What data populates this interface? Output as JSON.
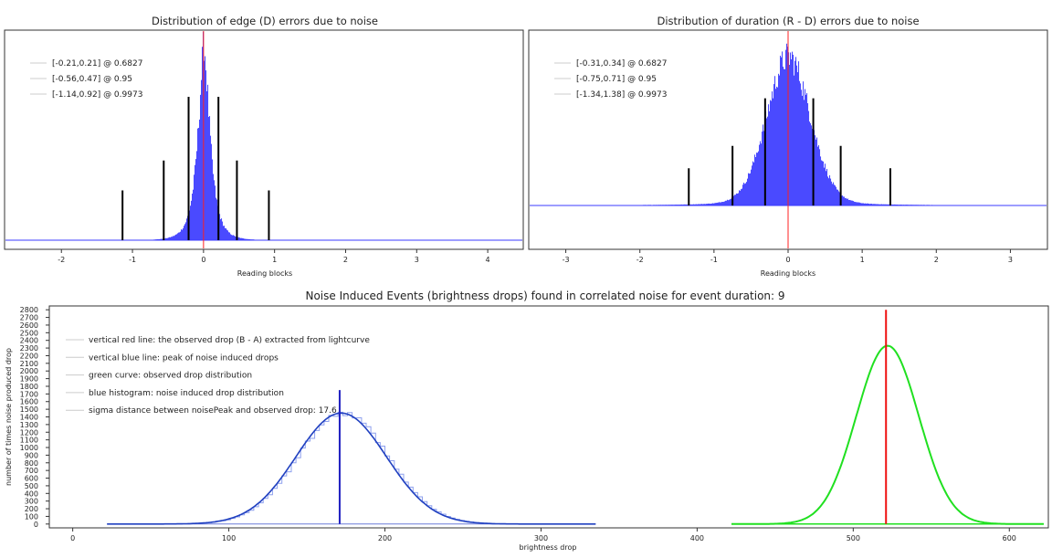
{
  "chart_data": [
    {
      "type": "bar",
      "title": "Distribution of edge (D) errors due to noise",
      "xlabel": "Reading blocks",
      "ylabel": "",
      "xlim": [
        -2.8,
        4.5
      ],
      "ylim": [
        0,
        1.0
      ],
      "x_ticks": [
        -2,
        -1,
        0,
        1,
        2,
        3,
        4
      ],
      "grid": false,
      "legend_position": "top-left",
      "legend": [
        "[-0.21,0.21] @ 0.6827",
        "[-0.56,0.47] @ 0.95",
        "[-1.14,0.92] @ 0.9973"
      ],
      "histogram": {
        "center": 0.0,
        "spread": 0.13,
        "color": "#3b3bff"
      },
      "bounds": [
        {
          "x": -0.21,
          "level": 0.6827
        },
        {
          "x": 0.21,
          "level": 0.6827
        },
        {
          "x": -0.56,
          "level": 0.95
        },
        {
          "x": 0.47,
          "level": 0.95
        },
        {
          "x": -1.14,
          "level": 0.9973
        },
        {
          "x": 0.92,
          "level": 0.9973
        }
      ],
      "zero_line": 0,
      "colors": {
        "bounds": "#000000",
        "zero_line": "#ff2020",
        "baseline": "#3b3bff"
      }
    },
    {
      "type": "bar",
      "title": "Distribution of duration (R - D) errors due to noise",
      "xlabel": "Reading blocks",
      "ylabel": "",
      "xlim": [
        -3.5,
        3.5
      ],
      "ylim": [
        0,
        1.0
      ],
      "x_ticks": [
        -3,
        -2,
        -1,
        0,
        1,
        2,
        3
      ],
      "grid": false,
      "legend_position": "top-left",
      "legend": [
        "[-0.31,0.34] @ 0.6827",
        "[-0.75,0.71] @ 0.95",
        "[-1.34,1.38] @ 0.9973"
      ],
      "histogram": {
        "center": 0.0,
        "spread": 0.3,
        "color": "#3b3bff"
      },
      "bounds": [
        {
          "x": -0.31,
          "level": 0.6827
        },
        {
          "x": 0.34,
          "level": 0.6827
        },
        {
          "x": -0.75,
          "level": 0.95
        },
        {
          "x": 0.71,
          "level": 0.95
        },
        {
          "x": -1.34,
          "level": 0.9973
        },
        {
          "x": 1.38,
          "level": 0.9973
        }
      ],
      "zero_line": 0,
      "colors": {
        "bounds": "#000000",
        "zero_line": "#ff2020",
        "baseline": "#3b3bff"
      }
    },
    {
      "type": "line",
      "title": "Noise Induced Events (brightness drops) found in correlated noise for event duration: 9",
      "xlabel": "brightness drop",
      "ylabel": "number of times noise produced drop",
      "xlim": [
        -15,
        625
      ],
      "ylim": [
        -50,
        2850
      ],
      "x_ticks": [
        0,
        100,
        200,
        300,
        400,
        500,
        600
      ],
      "y_ticks": [
        0,
        100,
        200,
        300,
        400,
        500,
        600,
        700,
        800,
        900,
        1000,
        1100,
        1200,
        1300,
        1400,
        1500,
        1600,
        1700,
        1800,
        1900,
        2000,
        2100,
        2200,
        2300,
        2400,
        2500,
        2600,
        2700,
        2800
      ],
      "grid": false,
      "legend_position": "top-left",
      "legend": [
        "vertical red line: the observed drop (B - A) extracted from lightcurve",
        "vertical blue line: peak of noise induced drops",
        "green curve: observed drop distribution",
        "blue histogram: noise induced drop distribution",
        "sigma distance between noisePeak and observed drop: 17.6"
      ],
      "series": [
        {
          "name": "blue histogram",
          "kind": "histogram",
          "peak": 1450,
          "center": 172,
          "sigma": 29,
          "x_range": [
            22,
            335
          ],
          "color": "#2040c0"
        },
        {
          "name": "green curve",
          "kind": "gaussian",
          "peak": 2330,
          "center": 522,
          "sigma": 20,
          "x_range": [
            422,
            622
          ],
          "color": "#20e020"
        }
      ],
      "vertical_lines": [
        {
          "name": "noise peak",
          "x": 171,
          "y_top": 1750,
          "color": "#2020c0"
        },
        {
          "name": "observed drop",
          "x": 521,
          "y_top": 2800,
          "color": "#ee1010"
        }
      ]
    }
  ]
}
